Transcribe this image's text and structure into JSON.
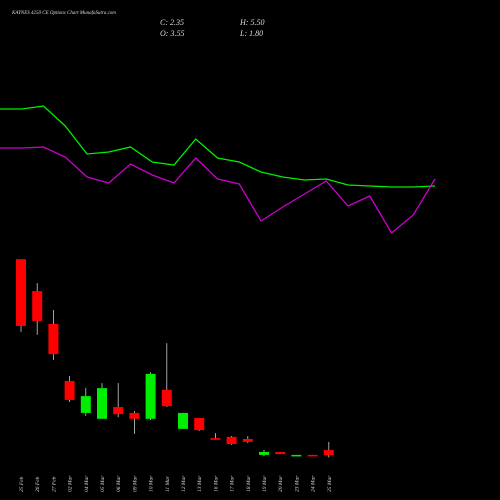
{
  "chart_data": [
    {
      "type": "candlestick",
      "title": "KAYNES 4250 CE Options Chart MunafaSutra.com",
      "info": [
        "C: 2.35",
        "H: 5.50",
        "O: 3.55",
        "L: 1.80"
      ],
      "categories": [
        "25 Feb",
        "26 Feb",
        "27 Feb",
        "02 Mar",
        "04 Mar",
        "05 Mar",
        "06 Mar",
        "09 Mar",
        "10 Mar",
        "11 Mar",
        "12 Mar",
        "13 Mar",
        "16 Mar",
        "17 Mar",
        "18 Mar",
        "19 Mar",
        "20 Mar",
        "23 Mar",
        "24 Mar",
        "25 Mar"
      ],
      "open": [
        49.0,
        41.4,
        33.6,
        20.0,
        12.4,
        11.0,
        13.8,
        12.4,
        11.0,
        17.9,
        8.6,
        11.2,
        6.4,
        6.7,
        6.2,
        2.4,
        3.1,
        2.1,
        2.4,
        3.55
      ],
      "high": [
        49.0,
        43.3,
        36.9,
        21.2,
        18.3,
        19.5,
        19.5,
        12.9,
        22.1,
        29.0,
        12.4,
        11.2,
        7.6,
        6.9,
        6.9,
        3.6,
        3.1,
        2.4,
        2.4,
        5.5
      ],
      "low": [
        31.7,
        31.0,
        25.0,
        15.0,
        11.7,
        11.0,
        11.4,
        7.4,
        10.7,
        13.8,
        8.6,
        8.1,
        6.0,
        4.8,
        5.2,
        2.1,
        2.6,
        2.1,
        2.1,
        1.8
      ],
      "close": [
        33.1,
        34.3,
        26.4,
        15.5,
        16.4,
        18.3,
        12.1,
        11.0,
        21.7,
        14.0,
        12.4,
        8.3,
        6.0,
        5.0,
        5.5,
        3.1,
        2.6,
        2.4,
        2.1,
        2.35
      ],
      "up_color": "#00ee00",
      "down_color": "#ff0000",
      "ylim": [
        0,
        50
      ]
    },
    {
      "type": "line",
      "series": [
        {
          "color": "#00ee00",
          "values": [
            191,
            191,
            194,
            174,
            146,
            148,
            153,
            138,
            135,
            161,
            142,
            138,
            128,
            123,
            120,
            121,
            115,
            114,
            113,
            113,
            114
          ]
        },
        {
          "color": "#cc00cc",
          "values": [
            152,
            152,
            153,
            143,
            123,
            117,
            136,
            125,
            117,
            142,
            121,
            116,
            79,
            93,
            106,
            119,
            94,
            104,
            67,
            85,
            121
          ]
        }
      ],
      "ylim": [
        60,
        200
      ]
    }
  ]
}
